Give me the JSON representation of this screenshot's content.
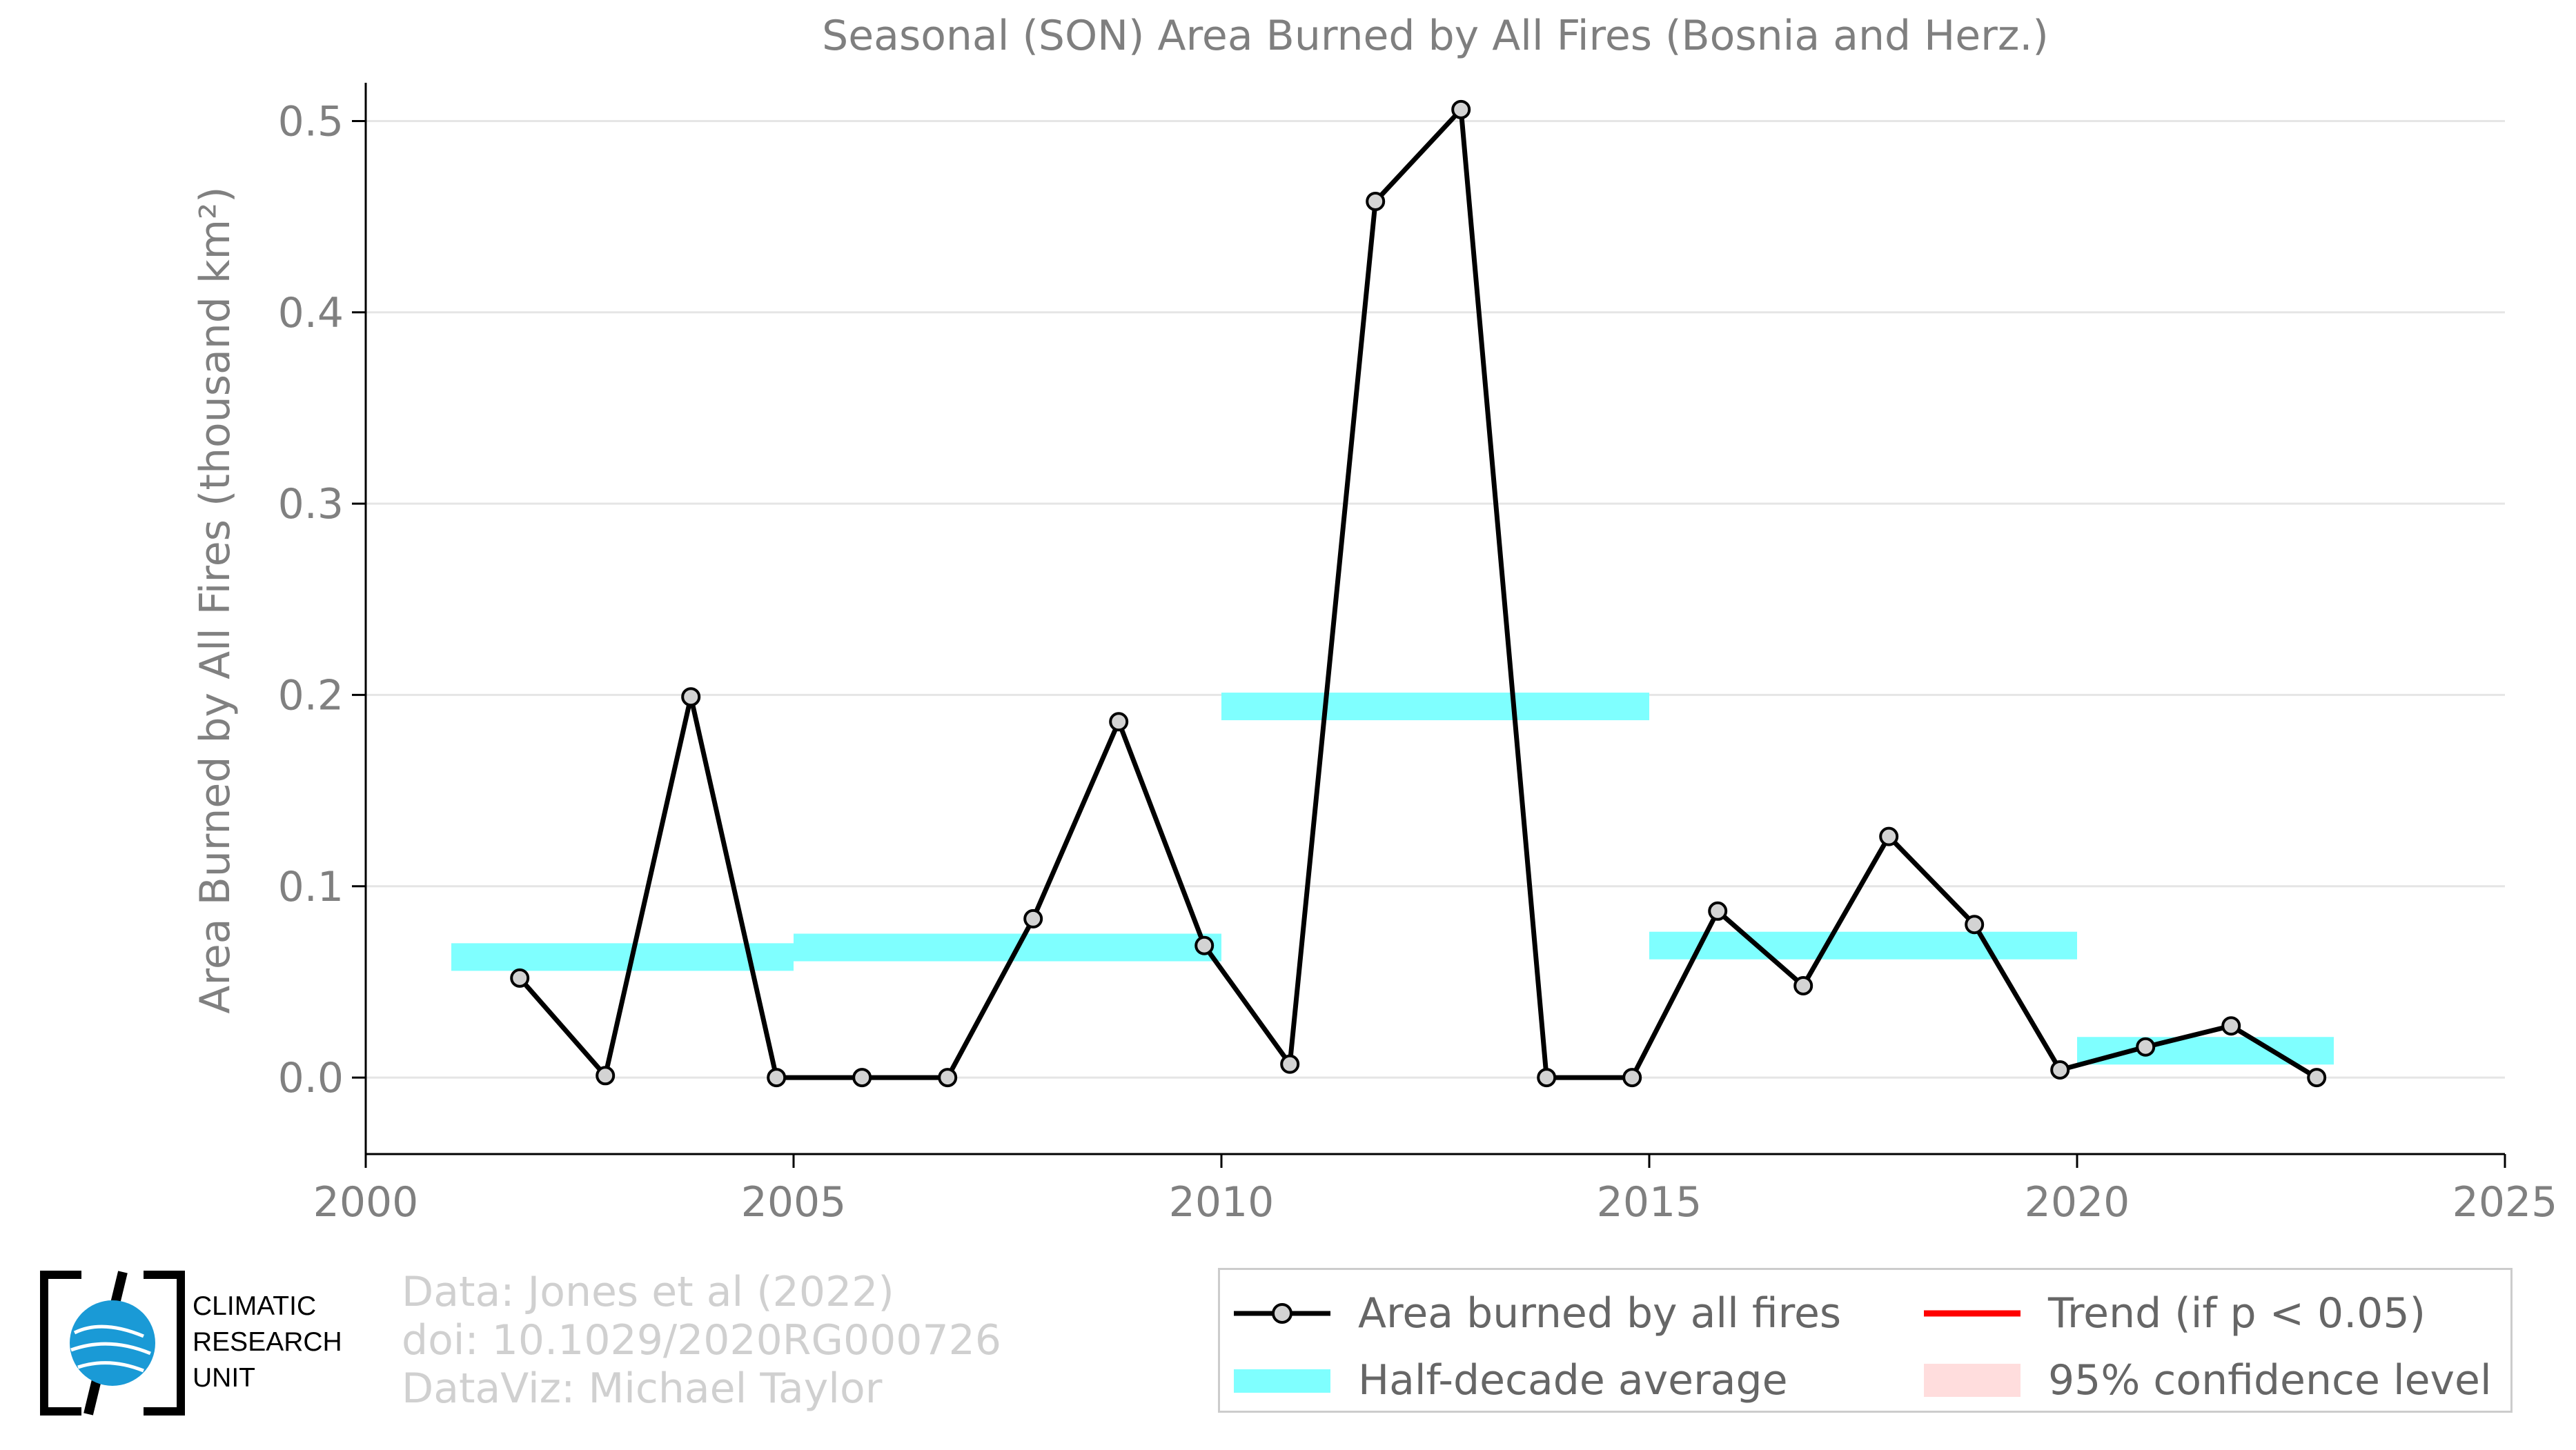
{
  "chart_data": {
    "type": "line",
    "title": "Seasonal (SON) Area Burned by All Fires (Bosnia and Herz.)",
    "ylabel": "Area Burned by All Fires (thousand km²)",
    "xlabel": "",
    "xlim": [
      2000,
      2025
    ],
    "ylim": [
      -0.04,
      0.52
    ],
    "xticks": [
      2000,
      2005,
      2010,
      2015,
      2020,
      2025
    ],
    "yticks": [
      0.0,
      0.1,
      0.2,
      0.3,
      0.4,
      0.5
    ],
    "ytick_labels": [
      "0.0",
      "0.1",
      "0.2",
      "0.3",
      "0.4",
      "0.5"
    ],
    "grid": "horizontal",
    "series": [
      {
        "name": "Area burned by all fires",
        "color": "#000000",
        "x": [
          2001.8,
          2002.8,
          2003.8,
          2004.8,
          2005.8,
          2006.8,
          2007.8,
          2008.8,
          2009.8,
          2010.8,
          2011.8,
          2012.8,
          2013.8,
          2014.8,
          2015.8,
          2016.8,
          2017.8,
          2018.8,
          2019.8,
          2020.8,
          2021.8,
          2022.8
        ],
        "values": [
          0.052,
          0.001,
          0.199,
          0.0,
          0.0,
          0.0,
          0.083,
          0.186,
          0.069,
          0.007,
          0.458,
          0.506,
          0.0,
          0.0,
          0.087,
          0.048,
          0.126,
          0.08,
          0.004,
          0.016,
          0.027,
          0.0
        ]
      }
    ],
    "half_decade_average": {
      "name": "Half-decade average",
      "color": "#7fffff",
      "segments": [
        {
          "x0": 2001.0,
          "x1": 2005.0,
          "value": 0.063
        },
        {
          "x0": 2005.0,
          "x1": 2010.0,
          "value": 0.068
        },
        {
          "x0": 2010.0,
          "x1": 2015.0,
          "value": 0.194
        },
        {
          "x0": 2015.0,
          "x1": 2020.0,
          "value": 0.069
        },
        {
          "x0": 2020.0,
          "x1": 2023.0,
          "value": 0.014
        }
      ]
    }
  },
  "legend": {
    "items": [
      {
        "label": "Area burned by all fires",
        "symbol": "line-marker",
        "color": "#000000"
      },
      {
        "label": "Trend (if p < 0.05)",
        "symbol": "line",
        "color": "#ff0000"
      },
      {
        "label": "Half-decade average",
        "symbol": "band",
        "color": "#7fffff"
      },
      {
        "label": "95% confidence level",
        "symbol": "band",
        "color": "#ffdddd"
      }
    ]
  },
  "credits": {
    "line1": "Data: Jones et al (2022)",
    "line2": "doi: 10.1029/2020RG000726",
    "line3": "DataViz: Michael Taylor"
  },
  "logo": {
    "line1": "CLIMATIC",
    "line2": "RESEARCH",
    "line3": "UNIT"
  }
}
